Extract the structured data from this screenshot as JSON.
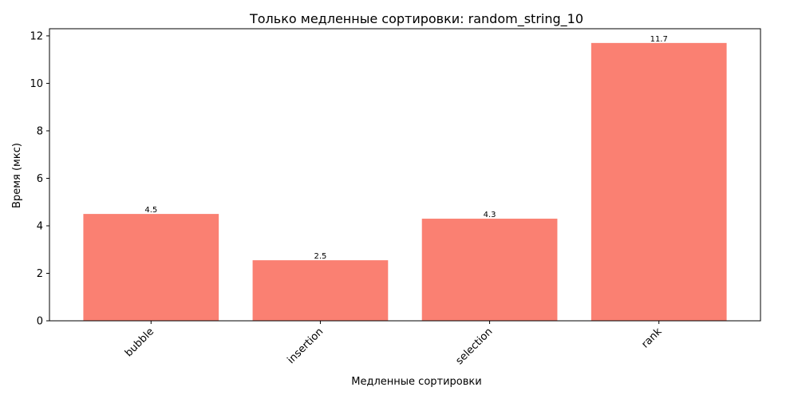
{
  "chart_data": {
    "type": "bar",
    "title": "Только медленные сортировки: random_string_10",
    "xlabel": "Медленные сортировки",
    "ylabel": "Время (мкс)",
    "categories": [
      "bubble",
      "insertion",
      "selection",
      "rank"
    ],
    "values": [
      4.5,
      2.55,
      4.3,
      11.7
    ],
    "data_labels": [
      "4.5",
      "2.5",
      "4.3",
      "11.7"
    ],
    "ylim": [
      0,
      12.3
    ],
    "yticks": [
      0,
      2,
      4,
      6,
      8,
      10,
      12
    ],
    "grid": false,
    "bar_color": "#fa8072",
    "xtick_rotation": 45
  }
}
